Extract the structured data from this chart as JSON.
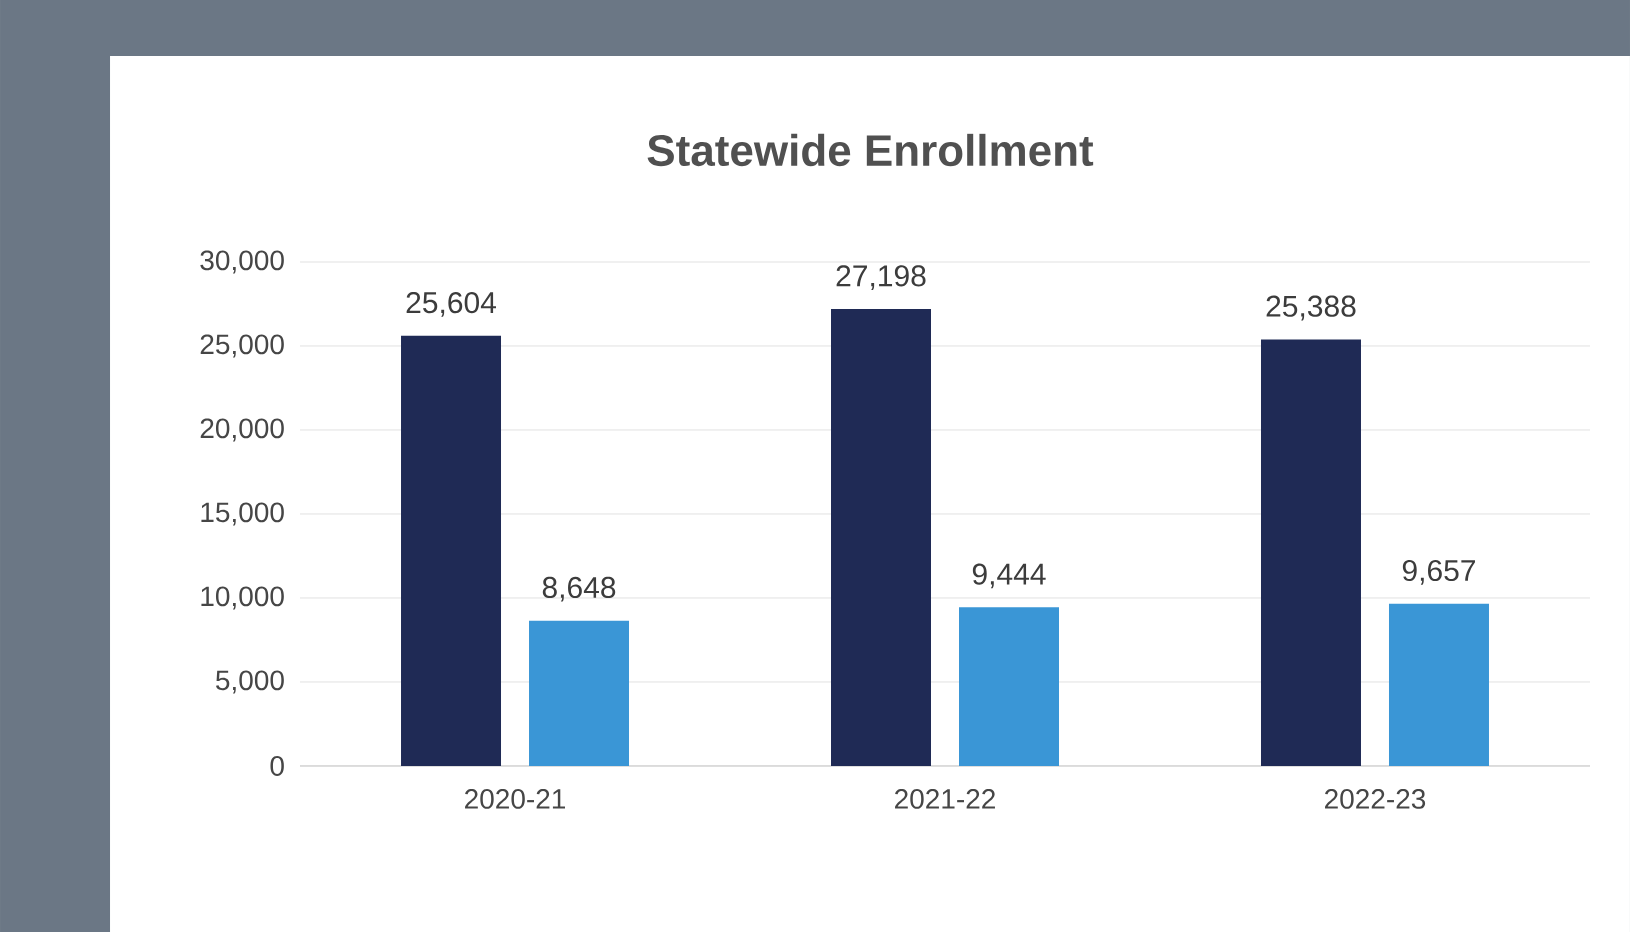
{
  "chart_data": {
    "type": "bar",
    "title": "Statewide Enrollment",
    "categories": [
      "2020-21",
      "2021-22",
      "2022-23"
    ],
    "series": [
      {
        "color": "#1f2a55",
        "values": [
          25604,
          27198,
          25388
        ]
      },
      {
        "color": "#3a96d6",
        "values": [
          8648,
          9444,
          9657
        ]
      }
    ],
    "ylim": [
      0,
      30000
    ],
    "yticks": [
      {
        "value": 0,
        "label": "0"
      },
      {
        "value": 5000,
        "label": "5,000"
      },
      {
        "value": 10000,
        "label": "10,000"
      },
      {
        "value": 15000,
        "label": "15,000"
      },
      {
        "value": 20000,
        "label": "20,000"
      },
      {
        "value": 25000,
        "label": "25,000"
      },
      {
        "value": 30000,
        "label": "30,000"
      }
    ],
    "value_labels": [
      [
        "25,604",
        "27,198",
        "25,388"
      ],
      [
        "8,648",
        "9,444",
        "9,657"
      ]
    ],
    "grid": "y"
  }
}
